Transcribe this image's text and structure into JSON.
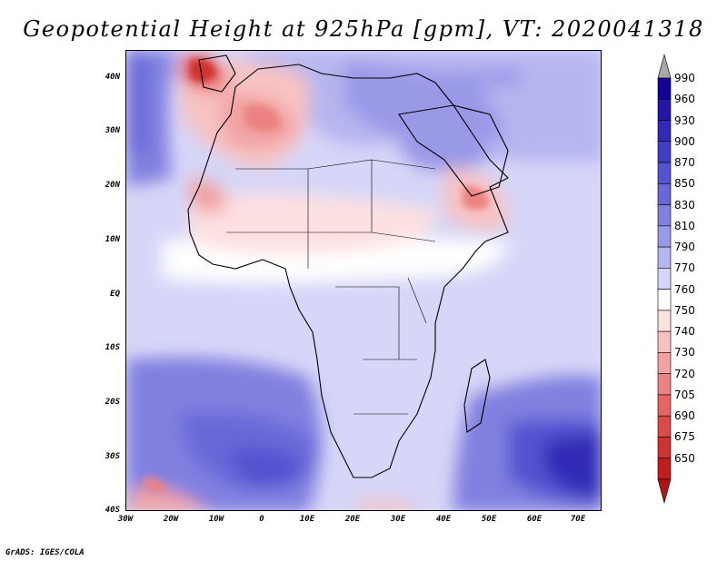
{
  "title": "Geopotential Height at 925hPa [gpm], VT: 2020041318",
  "credit": "GrADS: IGES/COLA",
  "map": {
    "region": "Africa",
    "lat_labels": [
      "40N",
      "30N",
      "20N",
      "10N",
      "EQ",
      "10S",
      "20S",
      "30S",
      "40S"
    ],
    "lon_labels": [
      "30W",
      "20W",
      "10W",
      "0",
      "10E",
      "20E",
      "30E",
      "40E",
      "50E",
      "60E",
      "70E"
    ]
  },
  "colorbar": {
    "levels": [
      {
        "label": "990",
        "color": "#12009a"
      },
      {
        "label": "960",
        "color": "#2416a8"
      },
      {
        "label": "930",
        "color": "#3229b6"
      },
      {
        "label": "900",
        "color": "#403ec4"
      },
      {
        "label": "870",
        "color": "#5553d0"
      },
      {
        "label": "850",
        "color": "#6a68d8"
      },
      {
        "label": "830",
        "color": "#8180e0"
      },
      {
        "label": "810",
        "color": "#9a99e8"
      },
      {
        "label": "790",
        "color": "#b5b5f0"
      },
      {
        "label": "770",
        "color": "#d6d6f8"
      },
      {
        "label": "760",
        "color": "#ffffff"
      },
      {
        "label": "750",
        "color": "#fde0e0"
      },
      {
        "label": "740",
        "color": "#f8c2c2"
      },
      {
        "label": "730",
        "color": "#f2a2a2"
      },
      {
        "label": "720",
        "color": "#ec8282"
      },
      {
        "label": "705",
        "color": "#e56464"
      },
      {
        "label": "690",
        "color": "#db4a4a"
      },
      {
        "label": "675",
        "color": "#cf3232"
      },
      {
        "label": "650",
        "color": "#c01e1e"
      }
    ],
    "over_color": "#a8a8a8",
    "under_color": "#b01515"
  }
}
